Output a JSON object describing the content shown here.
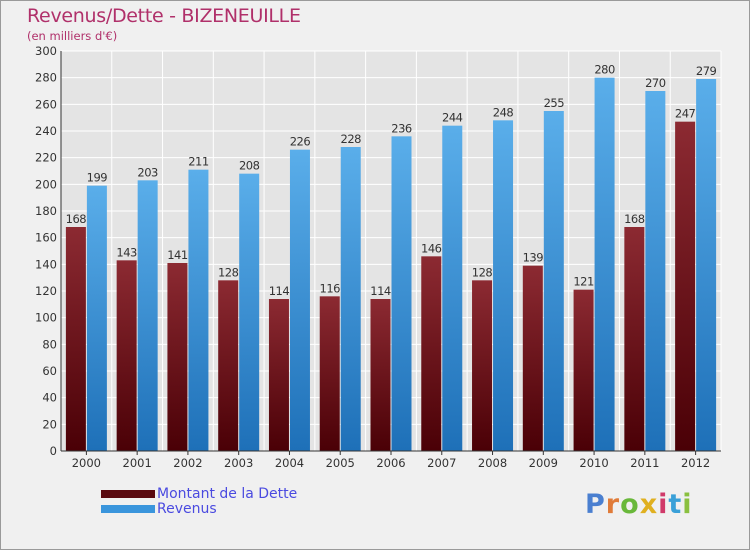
{
  "header": {
    "title": "Revenus/Dette - BIZENEUILLE",
    "subtitle": "(en milliers d'€)"
  },
  "chart_data": {
    "type": "bar",
    "categories": [
      "2000",
      "2001",
      "2002",
      "2003",
      "2004",
      "2005",
      "2006",
      "2007",
      "2008",
      "2009",
      "2010",
      "2011",
      "2012"
    ],
    "series": [
      {
        "name": "Montant de la Dette",
        "color": "#7a1a22",
        "values": [
          168,
          143,
          141,
          128,
          114,
          116,
          114,
          146,
          128,
          139,
          121,
          168,
          247
        ]
      },
      {
        "name": "Revenus",
        "color": "#3a95dc",
        "values": [
          199,
          203,
          211,
          208,
          226,
          228,
          236,
          244,
          248,
          255,
          280,
          270,
          279
        ]
      }
    ],
    "ylim": [
      0,
      300
    ],
    "ytick_step": 20,
    "grid": true,
    "legend_position": "bottom-left"
  },
  "legend": {
    "items": [
      {
        "label": "Montant de la Dette",
        "color": "#5a0a10"
      },
      {
        "label": "Revenus",
        "color": "#3a95dc"
      }
    ]
  },
  "logo": {
    "letters": [
      {
        "ch": "P",
        "color": "#4a7fd0"
      },
      {
        "ch": "r",
        "color": "#e07b39"
      },
      {
        "ch": "o",
        "color": "#69b83a"
      },
      {
        "ch": "x",
        "color": "#e0b020"
      },
      {
        "ch": "i",
        "color": "#d03a6a"
      },
      {
        "ch": "t",
        "color": "#3aa0d8"
      },
      {
        "ch": "i",
        "color": "#8ac040"
      }
    ]
  }
}
